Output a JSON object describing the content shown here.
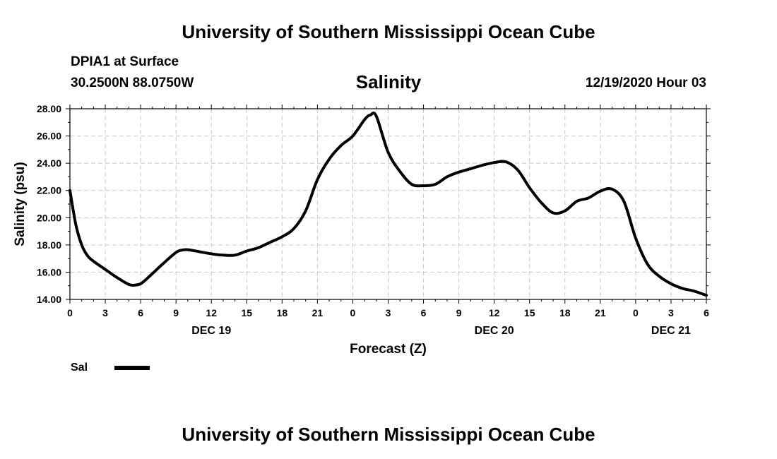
{
  "header": {
    "title_top": "University of Southern Mississippi Ocean Cube",
    "title_bottom": "University of Southern Mississippi Ocean Cube",
    "station": "DPIA1 at Surface",
    "coordinates": "30.2500N 88.0750W",
    "datetime": "12/19/2020 Hour 03"
  },
  "chart_data": {
    "type": "line",
    "title": "Salinity",
    "xlabel": "Forecast (Z)",
    "ylabel": "Salinity (psu)",
    "ylim": [
      14,
      28
    ],
    "xlim": [
      0,
      54
    ],
    "yticks": [
      "14.00",
      "16.00",
      "18.00",
      "20.00",
      "22.00",
      "24.00",
      "26.00",
      "28.00"
    ],
    "xtick_labels": [
      "0",
      "3",
      "6",
      "9",
      "12",
      "15",
      "18",
      "21",
      "0",
      "3",
      "6",
      "9",
      "12",
      "15",
      "18",
      "21",
      "0",
      "3",
      "6"
    ],
    "day_labels": [
      {
        "hour": 12,
        "text": "DEC 19"
      },
      {
        "hour": 36,
        "text": "DEC 20"
      },
      {
        "hour": 51,
        "text": "DEC 21"
      }
    ],
    "grid": true,
    "legend_position": "bottom-left",
    "series": [
      {
        "name": "Sal",
        "x": [
          0,
          0.5,
          1,
          1.5,
          2,
          3,
          4,
          5,
          5.5,
          6,
          6.5,
          7,
          8,
          9,
          9.5,
          10,
          11,
          12,
          13,
          14,
          15,
          16,
          17,
          18,
          19,
          20,
          21,
          22,
          23,
          24,
          25,
          25.5,
          26,
          27,
          28,
          29,
          30,
          31,
          32,
          33,
          34,
          35,
          36,
          37,
          38,
          39,
          40,
          41,
          42,
          43,
          44,
          45,
          46,
          47,
          48,
          49,
          50,
          51,
          52,
          53,
          54
        ],
        "y": [
          22.0,
          19.5,
          18.0,
          17.2,
          16.8,
          16.2,
          15.6,
          15.1,
          15.05,
          15.15,
          15.5,
          15.9,
          16.7,
          17.45,
          17.62,
          17.65,
          17.5,
          17.35,
          17.25,
          17.25,
          17.55,
          17.8,
          18.2,
          18.6,
          19.2,
          20.5,
          22.8,
          24.3,
          25.3,
          26.0,
          27.2,
          27.55,
          27.45,
          24.8,
          23.4,
          22.45,
          22.35,
          22.45,
          23.0,
          23.35,
          23.6,
          23.85,
          24.05,
          24.1,
          23.5,
          22.2,
          21.1,
          20.35,
          20.5,
          21.2,
          21.45,
          21.95,
          22.1,
          21.2,
          18.5,
          16.6,
          15.7,
          15.15,
          14.8,
          14.6,
          14.3
        ]
      }
    ]
  }
}
